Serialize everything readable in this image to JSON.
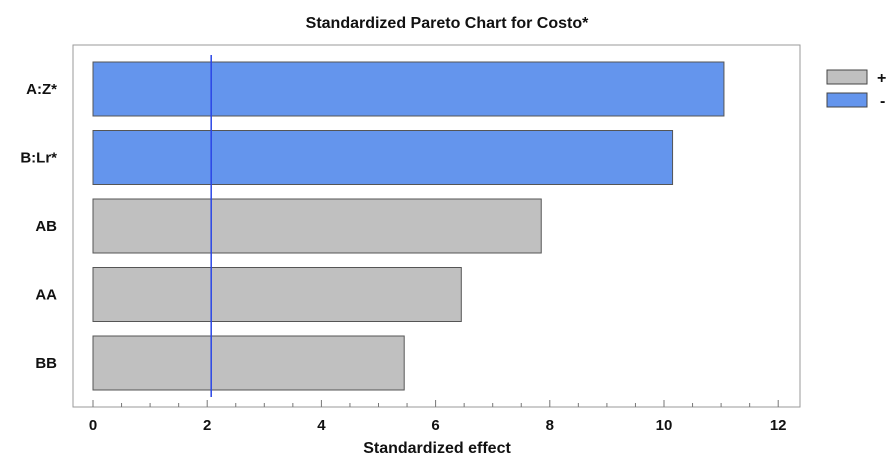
{
  "chart_data": {
    "type": "bar",
    "orientation": "horizontal",
    "title": "Standardized Pareto Chart for Costo*",
    "xlabel": "Standardized effect",
    "ylabel": "",
    "xlim": [
      0,
      12
    ],
    "xticks": [
      "0",
      "2",
      "4",
      "6",
      "8",
      "10",
      "12"
    ],
    "categories": [
      "A:Z*",
      "B:Lr*",
      "AB",
      "AA",
      "BB"
    ],
    "values": [
      11.05,
      10.15,
      7.85,
      6.45,
      5.45
    ],
    "signs": [
      "-",
      "-",
      "+",
      "+",
      "+"
    ],
    "reference_line": 2.07,
    "legend": [
      {
        "label": "+",
        "color": "#c0c0c0"
      },
      {
        "label": "-",
        "color": "#6495ed"
      }
    ],
    "legend_position": "right",
    "colors": {
      "positive": "#c0c0c0",
      "negative": "#6495ed",
      "reference": "#2a46e6"
    }
  }
}
